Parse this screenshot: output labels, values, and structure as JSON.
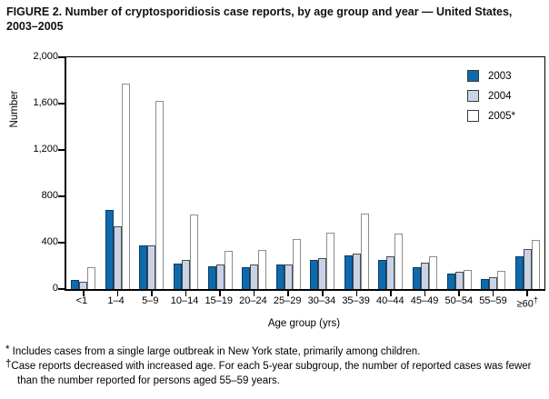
{
  "figure": {
    "title": "FIGURE 2. Number of cryptosporidiosis case reports, by age group and year — United States, 2003–2005",
    "footnotes": [
      {
        "marker": "*",
        "text": " Includes cases from a single large outbreak in New York state, primarily among children."
      },
      {
        "marker": "†",
        "text": "Case reports decreased with increased age. For each 5-year subgroup, the number of reported cases was fewer than the number reported for persons aged 55–59 years."
      }
    ]
  },
  "chart_data": {
    "type": "bar",
    "title": "Number of cryptosporidiosis case reports, by age group and year — United States, 2003–2005",
    "xlabel": "Age group (yrs)",
    "ylabel": "Number",
    "ylim": [
      0,
      2000
    ],
    "yticks": [
      0,
      400,
      800,
      1200,
      1600,
      2000
    ],
    "ytick_labels": [
      "0",
      "400",
      "800",
      "1,200",
      "1,600",
      "2,000"
    ],
    "grid": false,
    "legend_position": "top-right-inside",
    "categories": [
      "<1",
      "1–4",
      "5–9",
      "10–14",
      "15–19",
      "20–24",
      "25–29",
      "30–34",
      "35–39",
      "40–44",
      "45–49",
      "50–54",
      "55–59",
      "≥60"
    ],
    "category_markers": {
      "≥60": "†"
    },
    "series": [
      {
        "name": "2003",
        "color": "#0f6aad",
        "border_color": "#0d3a5f",
        "values": [
          75,
          685,
          380,
          220,
          200,
          190,
          210,
          255,
          290,
          255,
          190,
          130,
          85,
          280
        ]
      },
      {
        "name": "2004",
        "color": "#c9d3e8",
        "border_color": "#4a4a4a",
        "values": [
          65,
          545,
          375,
          255,
          210,
          215,
          210,
          265,
          305,
          280,
          225,
          150,
          105,
          345
        ]
      },
      {
        "name": "2005*",
        "color": "#ffffff",
        "border_color": "#8c8c8c",
        "values": [
          190,
          1770,
          1620,
          645,
          330,
          335,
          430,
          490,
          650,
          475,
          280,
          165,
          160,
          420
        ]
      }
    ]
  }
}
